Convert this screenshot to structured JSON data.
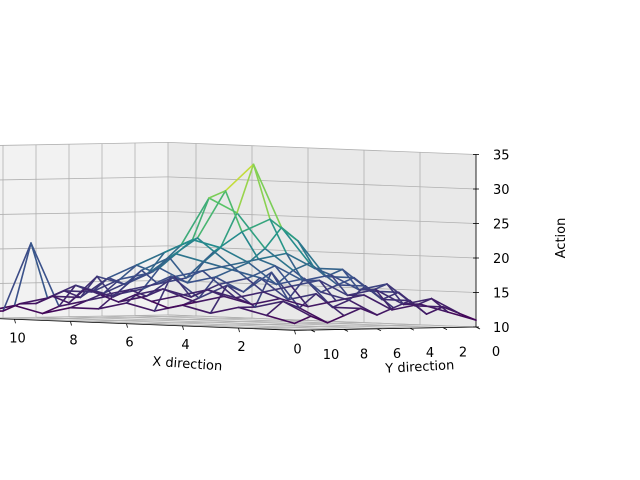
{
  "chart_data": {
    "type": "wireframe-3d",
    "title": "",
    "xlabel": "X direction",
    "ylabel": "Y direction",
    "zlabel": "Action",
    "x_ticks": [
      "0",
      "2",
      "4",
      "6",
      "8",
      "10"
    ],
    "y_ticks": [
      "0",
      "2",
      "4",
      "6",
      "8",
      "10"
    ],
    "z_ticks": [
      "10",
      "15",
      "20",
      "25",
      "30",
      "35"
    ],
    "xlim": [
      0,
      11
    ],
    "ylim": [
      0,
      11
    ],
    "zlim": [
      10,
      35
    ],
    "colormap": "viridis",
    "colormap_stops": [
      "#440154",
      "#3b528b",
      "#21918c",
      "#5ec962",
      "#fde725"
    ],
    "grid": true,
    "z_values": [
      [
        11,
        12,
        13,
        12,
        14,
        13,
        12,
        13,
        12,
        11,
        12,
        11
      ],
      [
        12,
        14,
        13,
        15,
        14,
        16,
        14,
        13,
        15,
        13,
        14,
        12
      ],
      [
        13,
        13,
        16,
        15,
        17,
        16,
        15,
        17,
        14,
        18,
        13,
        13
      ],
      [
        12,
        15,
        15,
        18,
        17,
        19,
        18,
        16,
        17,
        15,
        16,
        12
      ],
      [
        14,
        14,
        17,
        18,
        22,
        24,
        21,
        19,
        18,
        17,
        14,
        13
      ],
      [
        13,
        16,
        16,
        20,
        25,
        33,
        26,
        21,
        19,
        16,
        17,
        12
      ],
      [
        12,
        15,
        18,
        19,
        23,
        29,
        28,
        22,
        20,
        18,
        15,
        13
      ],
      [
        13,
        14,
        16,
        18,
        20,
        22,
        21,
        20,
        17,
        16,
        14,
        12
      ],
      [
        12,
        13,
        15,
        17,
        16,
        19,
        17,
        18,
        16,
        14,
        13,
        12
      ],
      [
        13,
        14,
        13,
        16,
        15,
        17,
        15,
        16,
        14,
        15,
        12,
        11
      ],
      [
        12,
        13,
        14,
        13,
        14,
        13,
        16,
        13,
        14,
        13,
        21,
        12
      ],
      [
        11,
        12,
        13,
        12,
        13,
        14,
        12,
        13,
        12,
        12,
        11,
        11
      ]
    ]
  }
}
